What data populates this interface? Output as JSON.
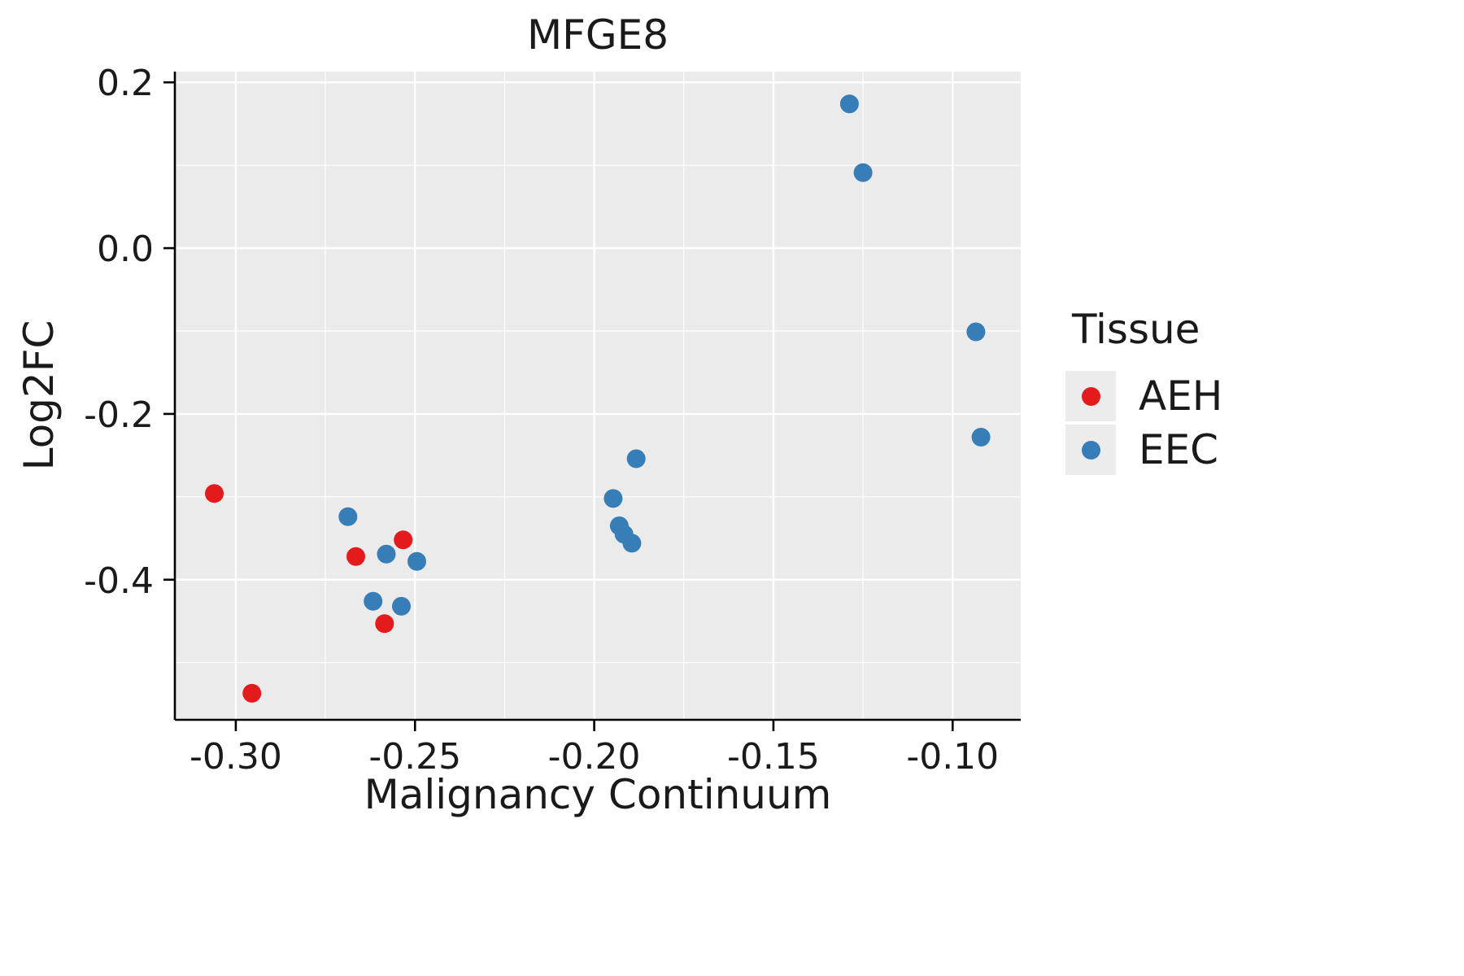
{
  "chart_data": {
    "type": "scatter",
    "title": "MFGE8",
    "xlabel": "Malignancy Continuum",
    "ylabel": "Log2FC",
    "legend_title": "Tissue",
    "panel_color": "#EBEBEB",
    "grid_color": "#FFFFFF",
    "axis_color": "#000000",
    "text_color": "#1A1A1A",
    "xlim": [
      -0.317,
      -0.081
    ],
    "ylim": [
      -0.569,
      0.213
    ],
    "x_ticks": [
      -0.3,
      -0.25,
      -0.2,
      -0.15,
      -0.1
    ],
    "x_tick_labels": [
      "-0.30",
      "-0.25",
      "-0.20",
      "-0.15",
      "-0.10"
    ],
    "x_minor_ticks": [
      -0.275,
      -0.225,
      -0.175,
      -0.125
    ],
    "y_ticks": [
      0.2,
      0.0,
      -0.2,
      -0.4
    ],
    "y_tick_labels": [
      "0.2",
      "0.0",
      "-0.2",
      "-0.4"
    ],
    "y_minor_ticks": [
      0.1,
      -0.1,
      -0.3,
      -0.5
    ],
    "series": [
      {
        "name": "AEH",
        "color": "#E41A1C",
        "points": [
          [
            -0.306,
            -0.296
          ],
          [
            -0.2955,
            -0.537
          ],
          [
            -0.2665,
            -0.372
          ],
          [
            -0.2585,
            -0.453
          ],
          [
            -0.2533,
            -0.352
          ]
        ]
      },
      {
        "name": "EEC",
        "color": "#377EB8",
        "points": [
          [
            -0.2687,
            -0.324
          ],
          [
            -0.2617,
            -0.426
          ],
          [
            -0.258,
            -0.369
          ],
          [
            -0.2538,
            -0.432
          ],
          [
            -0.2495,
            -0.378
          ],
          [
            -0.1947,
            -0.302
          ],
          [
            -0.193,
            -0.335
          ],
          [
            -0.1917,
            -0.345
          ],
          [
            -0.1895,
            -0.356
          ],
          [
            -0.1883,
            -0.254
          ],
          [
            -0.1288,
            0.174
          ],
          [
            -0.125,
            0.091
          ],
          [
            -0.0935,
            -0.101
          ],
          [
            -0.0921,
            -0.228
          ]
        ]
      }
    ]
  }
}
